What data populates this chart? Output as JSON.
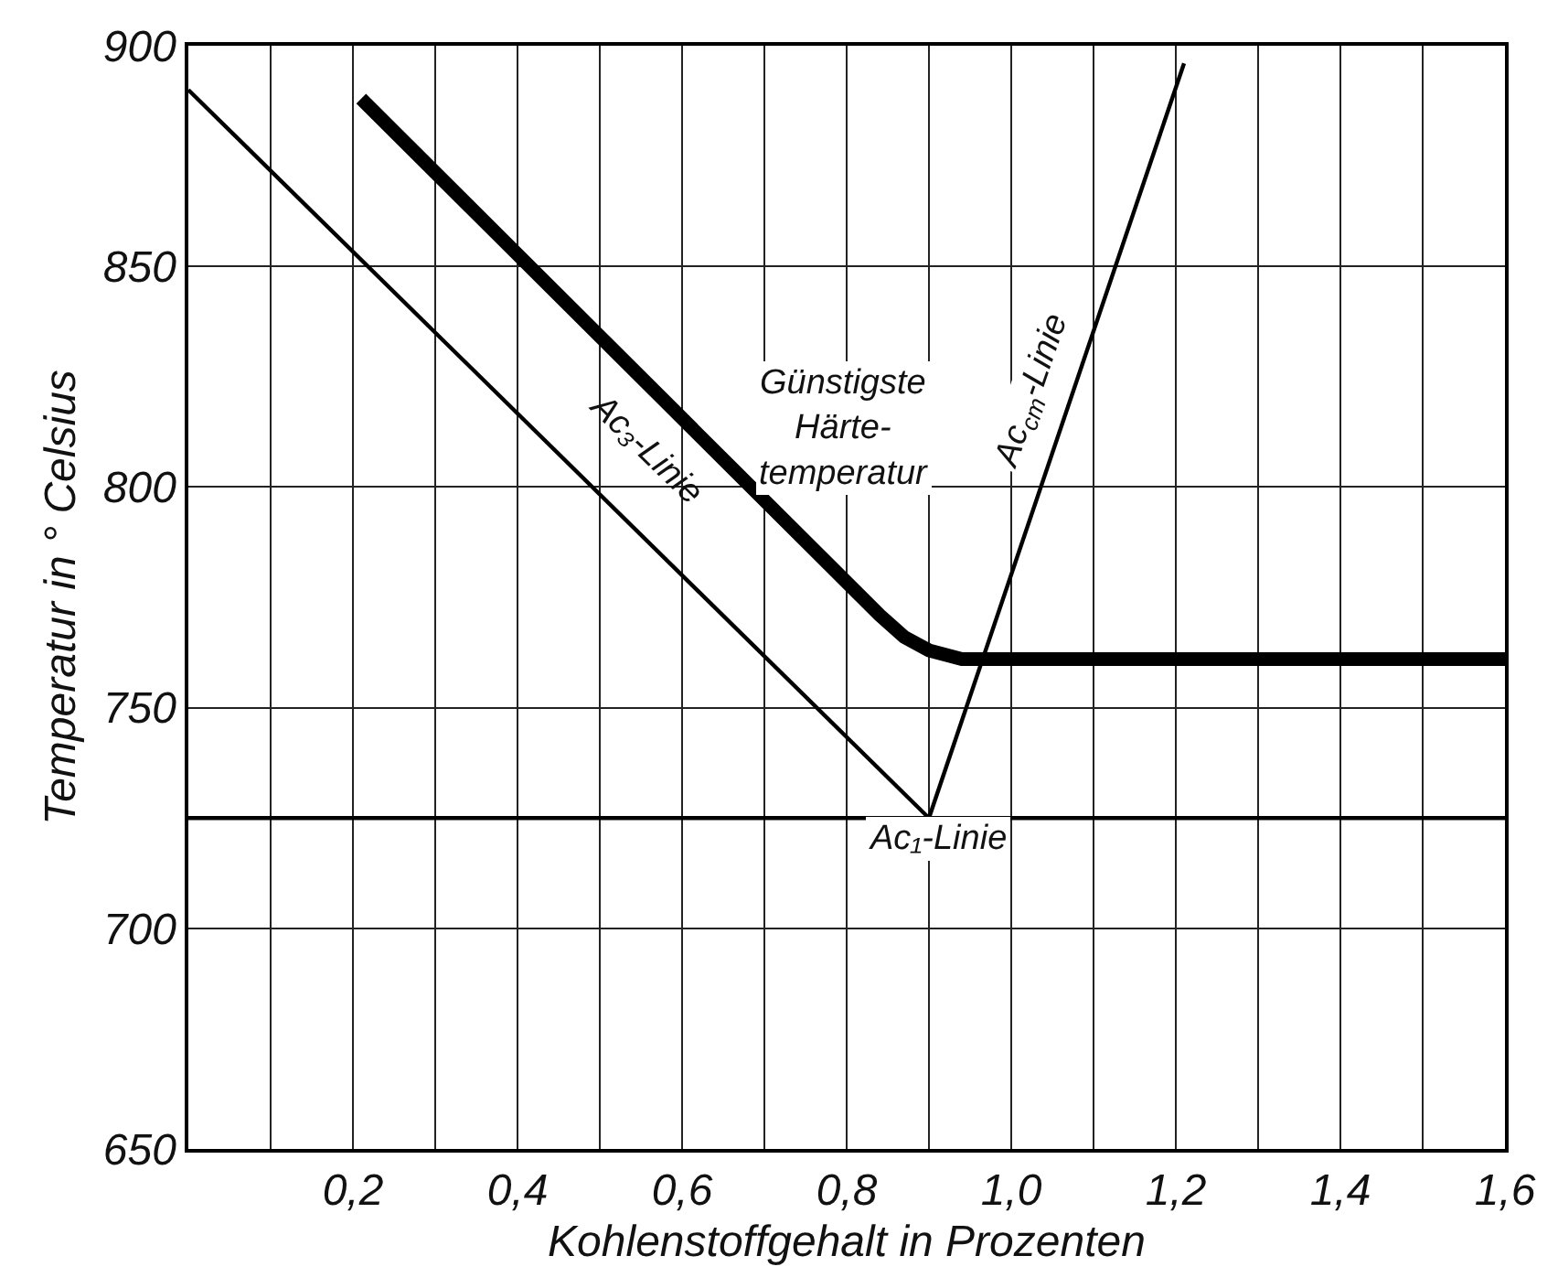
{
  "chart_data": {
    "type": "line",
    "xlabel": "Kohlenstoffgehalt in Prozenten",
    "ylabel": "Temperatur in ° Celsius",
    "xlim": [
      0,
      1.6
    ],
    "ylim": [
      650,
      900
    ],
    "xticks": [
      {
        "value": 0.1,
        "label": null
      },
      {
        "value": 0.2,
        "label": "0,2"
      },
      {
        "value": 0.3,
        "label": null
      },
      {
        "value": 0.4,
        "label": "0,4"
      },
      {
        "value": 0.5,
        "label": null
      },
      {
        "value": 0.6,
        "label": "0,6"
      },
      {
        "value": 0.7,
        "label": null
      },
      {
        "value": 0.8,
        "label": "0,8"
      },
      {
        "value": 0.9,
        "label": null
      },
      {
        "value": 1.0,
        "label": "1,0"
      },
      {
        "value": 1.1,
        "label": null
      },
      {
        "value": 1.2,
        "label": "1,2"
      },
      {
        "value": 1.3,
        "label": null
      },
      {
        "value": 1.4,
        "label": "1,4"
      },
      {
        "value": 1.5,
        "label": null
      },
      {
        "value": 1.6,
        "label": "1,6"
      }
    ],
    "yticks": [
      650,
      700,
      750,
      800,
      850,
      900
    ],
    "grid": true,
    "marker": "none",
    "line_style": "solid",
    "series": [
      {
        "color": "#000000",
        "x": [
          0,
          0.9
        ],
        "values": [
          890,
          725
        ]
      },
      {
        "color": "#000000",
        "x": [
          0.9,
          1.21
        ],
        "values": [
          725,
          896
        ]
      },
      {
        "color": "#000000",
        "x": [
          0,
          1.6
        ],
        "values": [
          725,
          725
        ]
      },
      {
        "color": "#000000",
        "x": [
          0.21,
          0.84,
          0.87,
          0.9,
          0.94,
          1.6
        ],
        "values": [
          888,
          771,
          766,
          763,
          761,
          761
        ]
      }
    ],
    "annotations": [
      "Ac₃-Linie",
      "Ac$_{cm}$-Linie",
      "Günstigste\nHärte-\ntemperatur",
      "Ac₁-Linie"
    ]
  }
}
